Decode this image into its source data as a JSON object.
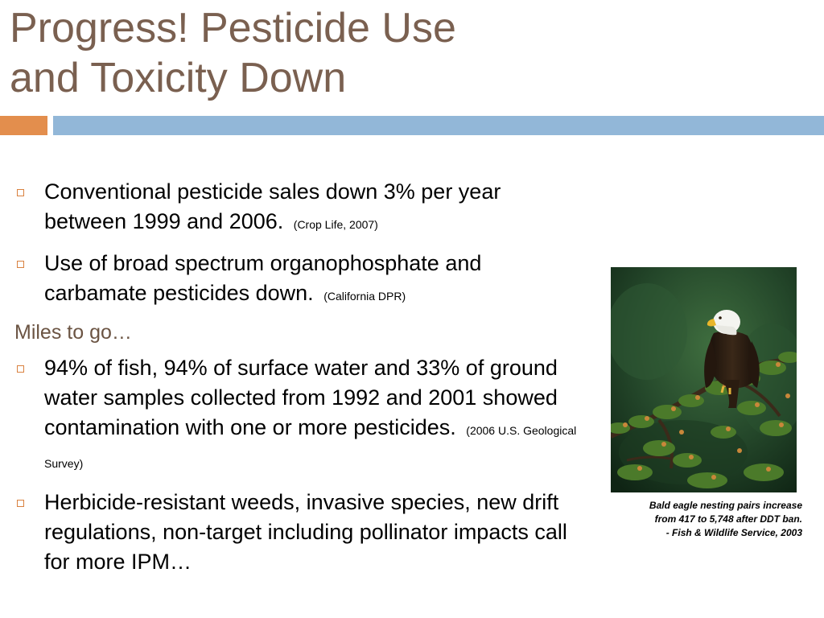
{
  "slide": {
    "title_lines": [
      "Progress! Pesticide Use",
      "and Toxicity Down"
    ],
    "bullets_progress": [
      {
        "text": "Conventional pesticide sales down 3% per year between 1999 and 2006.",
        "citation": "(Crop Life, 2007)"
      },
      {
        "text": "Use of broad spectrum organophosphate and carbamate pesticides down.",
        "citation": "(California DPR)"
      }
    ],
    "subheading": "Miles to go…",
    "bullets_remaining": [
      {
        "text": "94% of fish, 94% of surface water and 33% of ground water samples collected from 1992 and 2001 showed contamination with one or more pesticides.",
        "citation": "(2006 U.S. Geological Survey)"
      },
      {
        "text": "Herbicide-resistant weeds, invasive species, new drift regulations, non-target including pollinator impacts call for more IPM…"
      }
    ],
    "photo": {
      "subject": "bald eagle perched on a tree branch"
    },
    "caption_lines": [
      "Bald eagle nesting pairs increase",
      "from 417 to 5,748 after DDT ban.",
      "- Fish & Wildlife Service, 2003"
    ]
  },
  "colors": {
    "title": "#7a6050",
    "accent_orange": "#e38e4d",
    "accent_blue": "#92b7d8",
    "subheading": "#6b5443"
  }
}
